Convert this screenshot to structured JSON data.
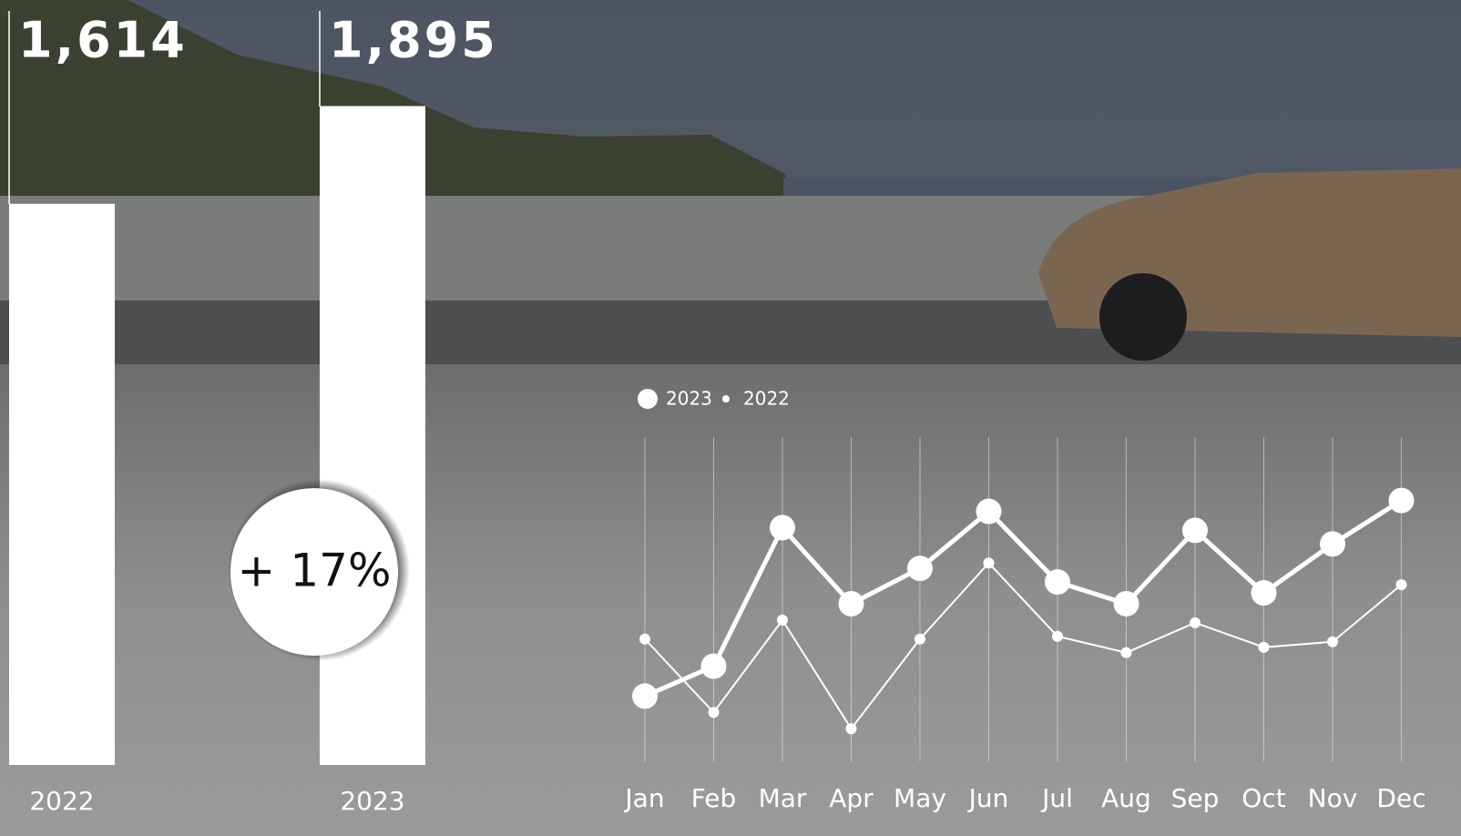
{
  "chart_data": [
    {
      "type": "bar",
      "categories": [
        "2022",
        "2023"
      ],
      "values": [
        1614,
        1895
      ],
      "value_labels": [
        "1,614",
        "1,895"
      ],
      "color": "#ffffff",
      "ylim": [
        0,
        2200
      ],
      "annotation": "+ 17%"
    },
    {
      "type": "line",
      "categories": [
        "Jan",
        "Feb",
        "Mar",
        "Apr",
        "May",
        "Jun",
        "Jul",
        "Aug",
        "Sep",
        "Oct",
        "Nov",
        "Dec"
      ],
      "series": [
        {
          "name": "2023",
          "color": "#ffffff",
          "values": [
            114,
            125,
            176,
            148,
            161,
            182,
            156,
            148,
            175,
            152,
            170,
            186
          ]
        },
        {
          "name": "2022",
          "color": "#ffffff",
          "values": [
            135,
            108,
            142,
            102,
            135,
            163,
            136,
            130,
            141,
            132,
            134,
            155
          ]
        }
      ],
      "ylim": [
        90,
        210
      ],
      "grid": true
    }
  ]
}
